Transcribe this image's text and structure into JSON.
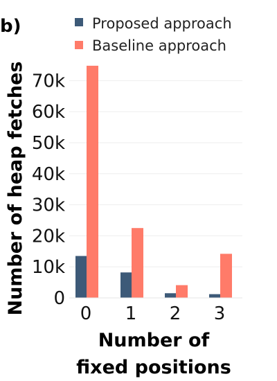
{
  "panel_label": "b)",
  "colors": {
    "proposed": "#3d5a78",
    "baseline": "#ff7b69",
    "grid": "#eeeeee"
  },
  "chart_data": {
    "type": "bar",
    "categories": [
      "0",
      "1",
      "2",
      "3"
    ],
    "series": [
      {
        "name": "Proposed approach",
        "values": [
          13500,
          8200,
          1500,
          1200
        ]
      },
      {
        "name": "Baseline approach",
        "values": [
          74800,
          22500,
          4100,
          14200
        ]
      }
    ],
    "xlabel_lines": [
      "Number of",
      "fixed positions"
    ],
    "ylabel": "Number of heap fetches",
    "yticks": [
      0,
      10000,
      20000,
      30000,
      40000,
      50000,
      60000,
      70000
    ],
    "ytick_labels": [
      "0",
      "10k",
      "20k",
      "30k",
      "40k",
      "50k",
      "60k",
      "70k"
    ],
    "ylim": [
      0,
      75000
    ],
    "grid": true,
    "legend_position": "top"
  }
}
